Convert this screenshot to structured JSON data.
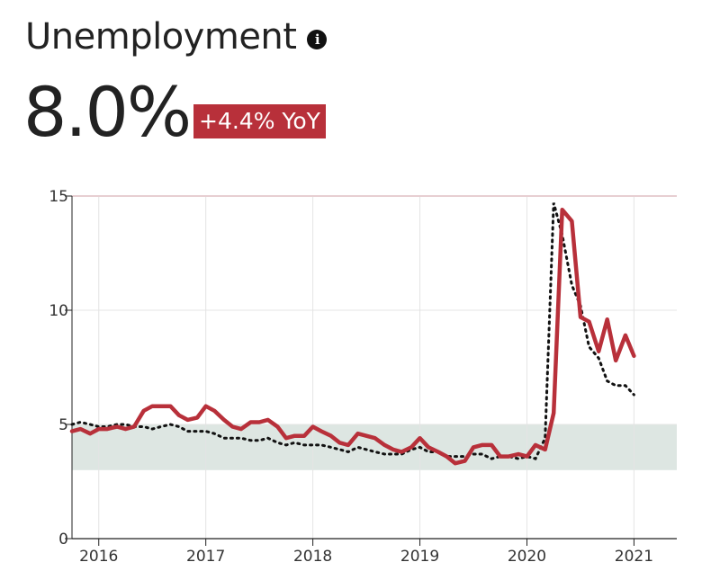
{
  "header": {
    "title": "Unemployment",
    "info_icon": "info-icon",
    "value": "8.0%",
    "change": "+4.4% YoY"
  },
  "colors": {
    "actual": "#b8303a",
    "projection": "#111111",
    "band": "#dde6e2",
    "badge": "#b8303a"
  },
  "chart_data": {
    "type": "line",
    "title": "",
    "xlabel": "",
    "ylabel": "",
    "xlim": [
      2015.75,
      2021.4
    ],
    "ylim": [
      0,
      15
    ],
    "grid": true,
    "x_ticks": [
      {
        "value": 2016,
        "label": "2016"
      },
      {
        "value": 2017,
        "label": "2017"
      },
      {
        "value": 2018,
        "label": "2018"
      },
      {
        "value": 2019,
        "label": "2019"
      },
      {
        "value": 2020,
        "label": "2020"
      },
      {
        "value": 2021,
        "label": "2021"
      }
    ],
    "y_ticks": [
      {
        "value": 0,
        "label": "0"
      },
      {
        "value": 5,
        "label": "5"
      },
      {
        "value": 10,
        "label": "10"
      },
      {
        "value": 15,
        "label": "15"
      }
    ],
    "band": {
      "y_from": 3,
      "y_to": 5
    },
    "series": [
      {
        "style": "solid",
        "points": [
          [
            2015.75,
            4.7
          ],
          [
            2015.83,
            4.8
          ],
          [
            2015.92,
            4.6
          ],
          [
            2016.0,
            4.8
          ],
          [
            2016.08,
            4.8
          ],
          [
            2016.17,
            4.9
          ],
          [
            2016.25,
            4.8
          ],
          [
            2016.33,
            4.9
          ],
          [
            2016.42,
            5.6
          ],
          [
            2016.5,
            5.8
          ],
          [
            2016.58,
            5.8
          ],
          [
            2016.67,
            5.8
          ],
          [
            2016.75,
            5.4
          ],
          [
            2016.83,
            5.2
          ],
          [
            2016.92,
            5.3
          ],
          [
            2017.0,
            5.8
          ],
          [
            2017.08,
            5.6
          ],
          [
            2017.17,
            5.2
          ],
          [
            2017.25,
            4.9
          ],
          [
            2017.33,
            4.8
          ],
          [
            2017.42,
            5.1
          ],
          [
            2017.5,
            5.1
          ],
          [
            2017.58,
            5.2
          ],
          [
            2017.67,
            4.9
          ],
          [
            2017.75,
            4.4
          ],
          [
            2017.83,
            4.5
          ],
          [
            2017.92,
            4.5
          ],
          [
            2018.0,
            4.9
          ],
          [
            2018.08,
            4.7
          ],
          [
            2018.17,
            4.5
          ],
          [
            2018.25,
            4.2
          ],
          [
            2018.33,
            4.1
          ],
          [
            2018.42,
            4.6
          ],
          [
            2018.5,
            4.5
          ],
          [
            2018.58,
            4.4
          ],
          [
            2018.67,
            4.1
          ],
          [
            2018.75,
            3.9
          ],
          [
            2018.83,
            3.8
          ],
          [
            2018.92,
            4.0
          ],
          [
            2019.0,
            4.4
          ],
          [
            2019.08,
            4.0
          ],
          [
            2019.17,
            3.8
          ],
          [
            2019.25,
            3.6
          ],
          [
            2019.33,
            3.3
          ],
          [
            2019.42,
            3.4
          ],
          [
            2019.5,
            4.0
          ],
          [
            2019.58,
            4.1
          ],
          [
            2019.67,
            4.1
          ],
          [
            2019.75,
            3.6
          ],
          [
            2019.83,
            3.6
          ],
          [
            2019.92,
            3.7
          ],
          [
            2020.0,
            3.6
          ],
          [
            2020.08,
            4.1
          ],
          [
            2020.17,
            3.9
          ],
          [
            2020.25,
            5.5
          ],
          [
            2020.33,
            14.4
          ],
          [
            2020.42,
            13.9
          ],
          [
            2020.5,
            9.7
          ],
          [
            2020.58,
            9.5
          ],
          [
            2020.67,
            8.2
          ],
          [
            2020.75,
            9.6
          ],
          [
            2020.83,
            7.8
          ],
          [
            2020.92,
            8.9
          ],
          [
            2021.0,
            8.0
          ]
        ]
      },
      {
        "style": "dotted",
        "points": [
          [
            2015.75,
            5.0
          ],
          [
            2015.83,
            5.1
          ],
          [
            2015.92,
            5.0
          ],
          [
            2016.0,
            4.9
          ],
          [
            2016.08,
            4.9
          ],
          [
            2016.17,
            5.0
          ],
          [
            2016.25,
            5.0
          ],
          [
            2016.33,
            4.9
          ],
          [
            2016.42,
            4.9
          ],
          [
            2016.5,
            4.8
          ],
          [
            2016.58,
            4.9
          ],
          [
            2016.67,
            5.0
          ],
          [
            2016.75,
            4.9
          ],
          [
            2016.83,
            4.7
          ],
          [
            2016.92,
            4.7
          ],
          [
            2017.0,
            4.7
          ],
          [
            2017.08,
            4.6
          ],
          [
            2017.17,
            4.4
          ],
          [
            2017.25,
            4.4
          ],
          [
            2017.33,
            4.4
          ],
          [
            2017.42,
            4.3
          ],
          [
            2017.5,
            4.3
          ],
          [
            2017.58,
            4.4
          ],
          [
            2017.67,
            4.2
          ],
          [
            2017.75,
            4.1
          ],
          [
            2017.83,
            4.2
          ],
          [
            2017.92,
            4.1
          ],
          [
            2018.0,
            4.1
          ],
          [
            2018.08,
            4.1
          ],
          [
            2018.17,
            4.0
          ],
          [
            2018.25,
            3.9
          ],
          [
            2018.33,
            3.8
          ],
          [
            2018.42,
            4.0
          ],
          [
            2018.5,
            3.9
          ],
          [
            2018.58,
            3.8
          ],
          [
            2018.67,
            3.7
          ],
          [
            2018.75,
            3.7
          ],
          [
            2018.83,
            3.7
          ],
          [
            2018.92,
            3.9
          ],
          [
            2019.0,
            4.0
          ],
          [
            2019.08,
            3.8
          ],
          [
            2019.17,
            3.8
          ],
          [
            2019.25,
            3.6
          ],
          [
            2019.33,
            3.6
          ],
          [
            2019.42,
            3.6
          ],
          [
            2019.5,
            3.7
          ],
          [
            2019.58,
            3.7
          ],
          [
            2019.67,
            3.5
          ],
          [
            2019.75,
            3.6
          ],
          [
            2019.83,
            3.6
          ],
          [
            2019.92,
            3.5
          ],
          [
            2020.0,
            3.6
          ],
          [
            2020.08,
            3.5
          ],
          [
            2020.17,
            4.4
          ],
          [
            2020.25,
            14.7
          ],
          [
            2020.33,
            13.3
          ],
          [
            2020.42,
            11.1
          ],
          [
            2020.5,
            10.2
          ],
          [
            2020.58,
            8.4
          ],
          [
            2020.67,
            7.9
          ],
          [
            2020.75,
            6.9
          ],
          [
            2020.83,
            6.7
          ],
          [
            2020.92,
            6.7
          ],
          [
            2021.0,
            6.3
          ]
        ]
      }
    ]
  }
}
